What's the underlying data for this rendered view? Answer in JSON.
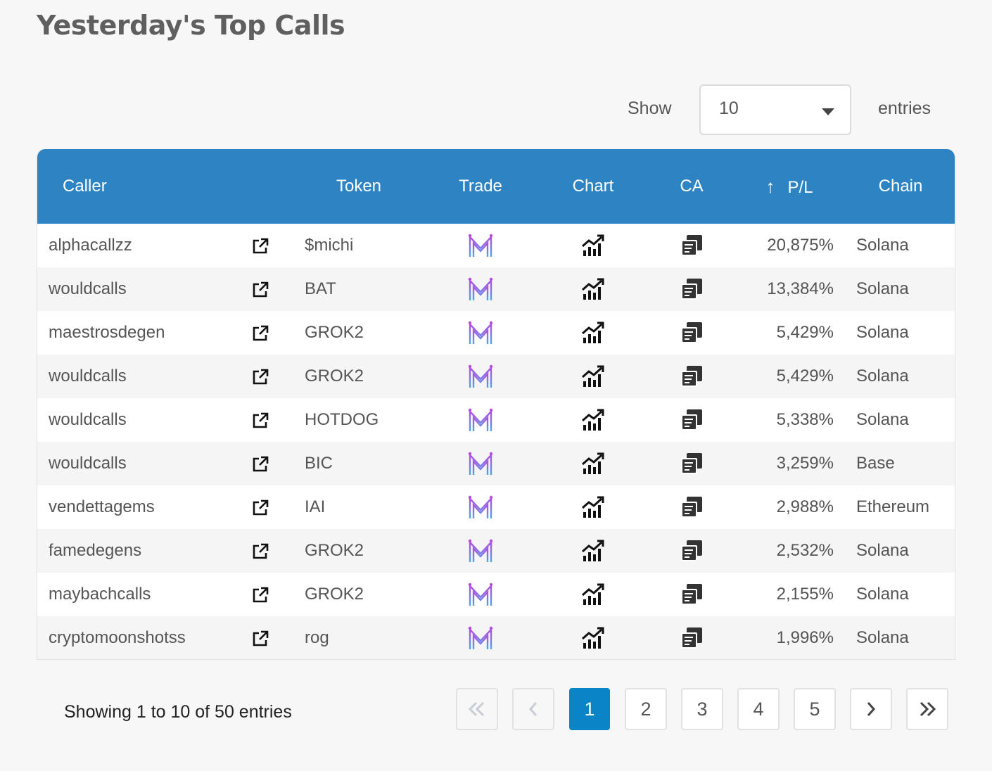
{
  "page_title": "Yesterday's Top Calls",
  "length_menu": {
    "show_label": "Show",
    "selected": "10",
    "entries_label": "entries"
  },
  "columns": {
    "caller": "Caller",
    "token": "Token",
    "trade": "Trade",
    "chart": "Chart",
    "ca": "CA",
    "pl": "P/L",
    "chain": "Chain",
    "sort_icon": "arrow-up-icon"
  },
  "rows": [
    {
      "caller": "alphacallzz",
      "token": "$michi",
      "pl": "20,875%",
      "chain": "Solana"
    },
    {
      "caller": "wouldcalls",
      "token": "BAT",
      "pl": "13,384%",
      "chain": "Solana"
    },
    {
      "caller": "maestrosdegen",
      "token": "GROK2",
      "pl": "5,429%",
      "chain": "Solana"
    },
    {
      "caller": "wouldcalls",
      "token": "GROK2",
      "pl": "5,429%",
      "chain": "Solana"
    },
    {
      "caller": "wouldcalls",
      "token": "HOTDOG",
      "pl": "5,338%",
      "chain": "Solana"
    },
    {
      "caller": "wouldcalls",
      "token": "BIC",
      "pl": "3,259%",
      "chain": "Base"
    },
    {
      "caller": "vendettagems",
      "token": "IAI",
      "pl": "2,988%",
      "chain": "Ethereum"
    },
    {
      "caller": "famedegens",
      "token": "GROK2",
      "pl": "2,532%",
      "chain": "Solana"
    },
    {
      "caller": "maybachcalls",
      "token": "GROK2",
      "pl": "2,155%",
      "chain": "Solana"
    },
    {
      "caller": "cryptomoonshotss",
      "token": "rog",
      "pl": "1,996%",
      "chain": "Solana"
    }
  ],
  "info_text": "Showing 1 to 10 of 50 entries",
  "pagination": {
    "first_icon": "double-chevron-left-icon",
    "prev_icon": "chevron-left-icon",
    "pages": [
      "1",
      "2",
      "3",
      "4",
      "5"
    ],
    "current": "1",
    "next_icon": "chevron-right-icon",
    "last_icon": "double-chevron-right-icon"
  },
  "colors": {
    "header_bg": "#2e84c3",
    "active_page": "#0a84c6"
  }
}
